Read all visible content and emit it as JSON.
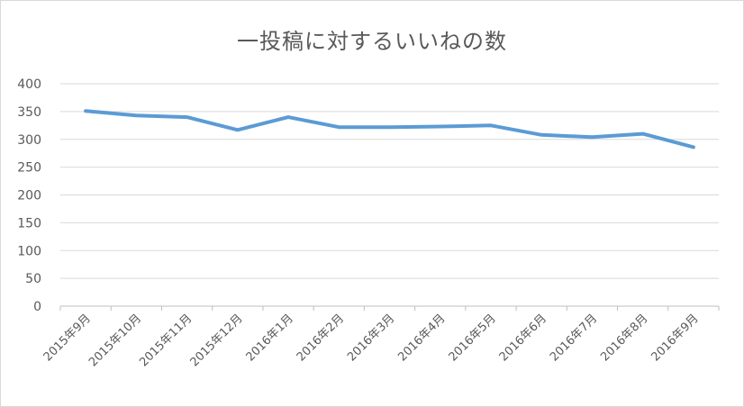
{
  "chart_data": {
    "type": "line",
    "title": "一投稿に対するいいねの数",
    "xlabel": "",
    "ylabel": "",
    "categories": [
      "2015年9月",
      "2015年10月",
      "2015年11月",
      "2015年12月",
      "2016年1月",
      "2016年2月",
      "2016年3月",
      "2016年4月",
      "2016年5月",
      "2016年6月",
      "2016年7月",
      "2016年8月",
      "2016年9月"
    ],
    "series": [
      {
        "values": [
          351,
          343,
          340,
          317,
          340,
          322,
          322,
          323,
          325,
          308,
          304,
          310,
          286
        ],
        "color": "#5b9bd5"
      }
    ],
    "ylim": [
      0,
      400
    ],
    "yticks": [
      0,
      50,
      100,
      150,
      200,
      250,
      300,
      350,
      400
    ],
    "grid": true,
    "legend": "none"
  }
}
